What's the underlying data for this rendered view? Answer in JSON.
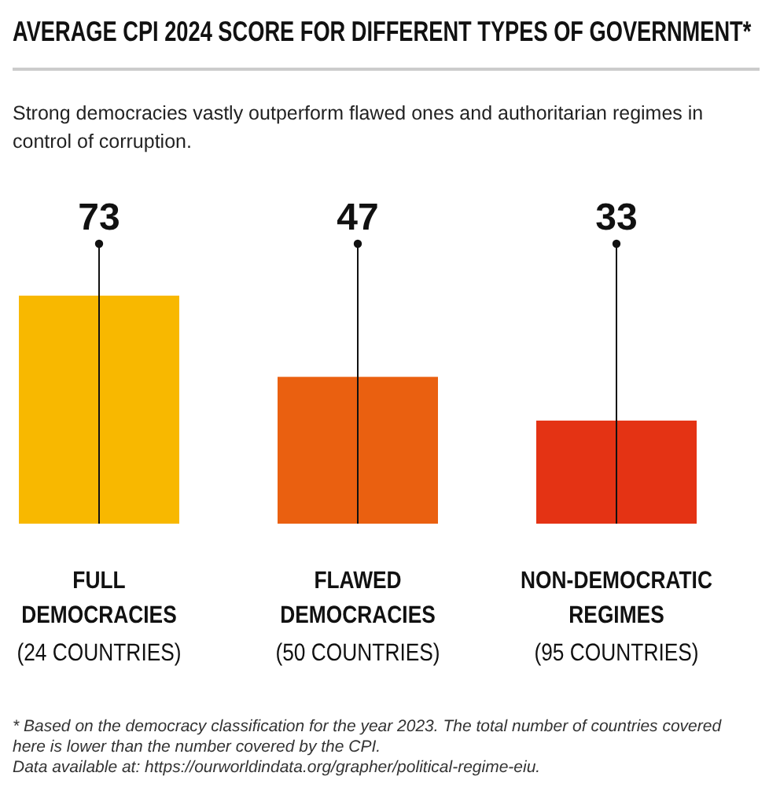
{
  "chart_data": {
    "type": "bar",
    "title": "AVERAGE CPI 2024 SCORE FOR DIFFERENT TYPES OF GOVERNMENT*",
    "subtitle": "Strong democracies vastly outperform flawed ones and authoritarian regimes in control of corruption.",
    "categories": [
      "FULL\nDEMOCRACIES\n(24 COUNTRIES)",
      "FLAWED\nDEMOCRACIES\n(50 COUNTRIES)",
      "NON-DEMOCRATIC\nREGIMES\n(95 COUNTRIES)"
    ],
    "values": [
      73,
      47,
      33
    ],
    "colors": [
      "#f8b800",
      "#ea6010",
      "#e43314"
    ],
    "data_labels": true,
    "annotations": [
      "* Based on the democracy classification for the year 2023. The total number of countries covered here is lower than the number covered by the CPI.",
      "Data available at: https://ourworldindata.org/grapher/political-regime-eiu."
    ]
  }
}
